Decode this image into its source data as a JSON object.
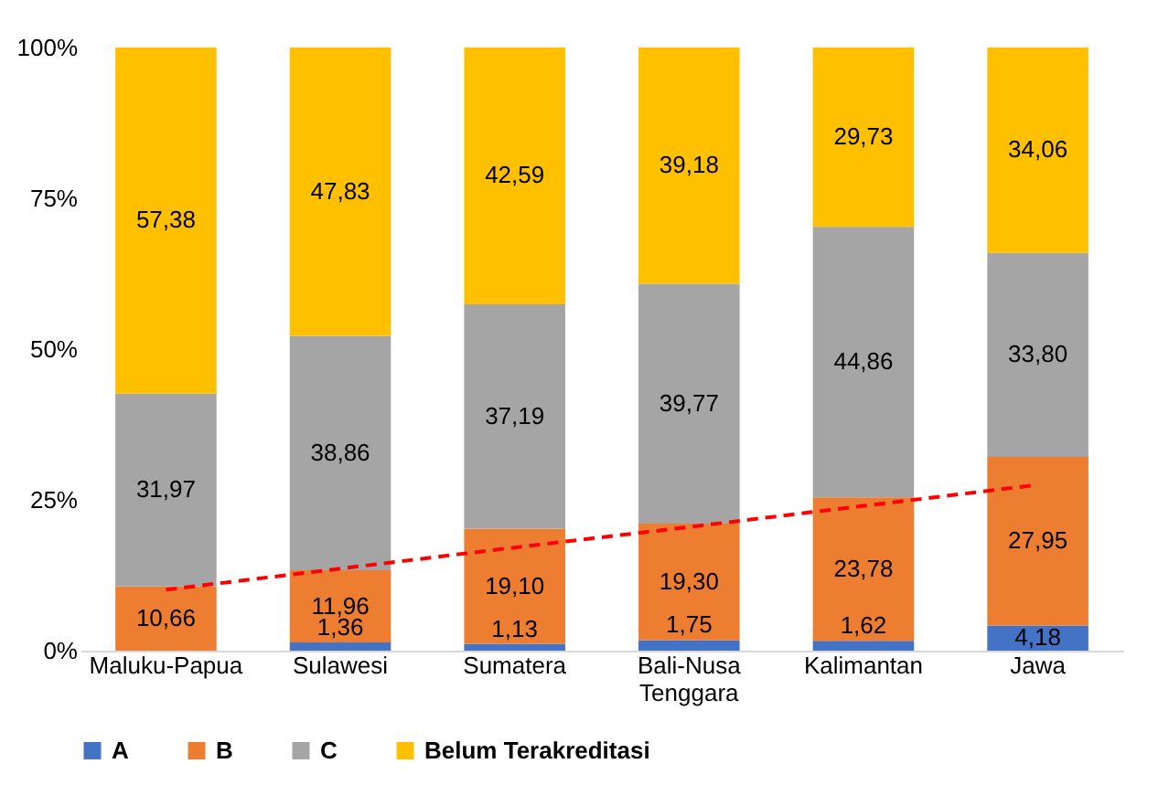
{
  "chart_data": {
    "type": "bar",
    "stacked": true,
    "categories": [
      "Maluku-Papua",
      "Sulawesi",
      "Sumatera",
      "Bali-Nusa Tenggara",
      "Kalimantan",
      "Jawa"
    ],
    "series": [
      {
        "name": "A",
        "color": "#4472c4",
        "values": [
          0,
          1.36,
          1.13,
          1.75,
          1.62,
          4.18
        ],
        "value_labels": [
          null,
          "1,36",
          "1,13",
          "1,75",
          "1,62",
          "4,18"
        ]
      },
      {
        "name": "B",
        "color": "#ed7d31",
        "values": [
          10.66,
          11.96,
          19.1,
          19.3,
          23.78,
          27.95
        ],
        "value_labels": [
          "10,66",
          "11,96",
          "19,10",
          "19,30",
          "23,78",
          "27,95"
        ]
      },
      {
        "name": "C",
        "color": "#a5a5a5",
        "values": [
          31.97,
          38.86,
          37.19,
          39.77,
          44.86,
          33.8
        ],
        "value_labels": [
          "31,97",
          "38,86",
          "37,19",
          "39,77",
          "44,86",
          "33,80"
        ]
      },
      {
        "name": "Belum Terakreditasi",
        "color": "#ffc000",
        "values": [
          57.38,
          47.83,
          42.59,
          39.18,
          29.73,
          34.06
        ],
        "value_labels": [
          "57,38",
          "47,83",
          "42,59",
          "39,18",
          "29,73",
          "34,06"
        ]
      },
      {
        "type": "line",
        "color": "#ff0000",
        "line_style": "dashed",
        "x": [
          "Maluku-Papua",
          "Sulawesi",
          "Sumatera",
          "Bali-Nusa Tenggara",
          "Kalimantan",
          "Jawa"
        ],
        "values": [
          10.1,
          13.6,
          17.1,
          20.5,
          24.0,
          27.5
        ]
      }
    ],
    "ylim": [
      0,
      100
    ],
    "yticks": [
      {
        "value": 0,
        "label": "0%"
      },
      {
        "value": 25,
        "label": "25%"
      },
      {
        "value": 50,
        "label": "50%"
      },
      {
        "value": 75,
        "label": "75%"
      },
      {
        "value": 100,
        "label": "100%"
      }
    ],
    "grid": false,
    "legend": "bottom"
  }
}
